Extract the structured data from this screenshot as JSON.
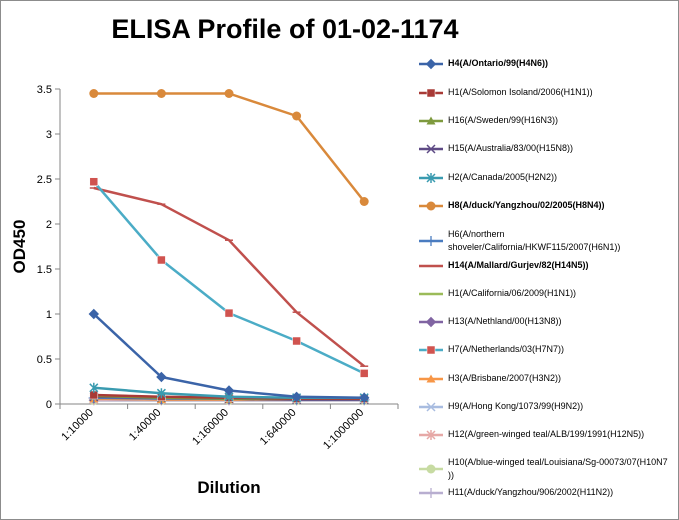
{
  "chart_data": {
    "type": "line",
    "title": "ELISA Profile of 01-02-1174",
    "xlabel": "Dilution",
    "ylabel": "OD450",
    "categories": [
      "1:10000",
      "1:40000",
      "1:160000",
      "1:640000",
      "1:1000000"
    ],
    "ylim": [
      0,
      3.5
    ],
    "yticks": [
      "0",
      "0.5",
      "1",
      "1.5",
      "2",
      "2.5",
      "3",
      "3.5"
    ],
    "grid": false,
    "legend_position": "right",
    "series": [
      {
        "name": "H4(A/Ontario/99(H4N6))",
        "color": "#3b64a8",
        "marker": "diamond",
        "bold": true,
        "values": [
          1.0,
          0.3,
          0.15,
          0.08,
          0.07
        ]
      },
      {
        "name": "H1(A/Solomon Isoland/2006(H1N1))",
        "color": "#a83a36",
        "marker": "square",
        "bold": false,
        "values": [
          0.1,
          0.08,
          0.07,
          0.06,
          0.06
        ]
      },
      {
        "name": "H16(A/Sweden/99(H16N3))",
        "color": "#7e9a3e",
        "marker": "triangle",
        "bold": false,
        "values": [
          0.09,
          0.07,
          0.06,
          0.06,
          0.06
        ]
      },
      {
        "name": "H15(A/Australia/83/00(H15N8))",
        "color": "#5e4a85",
        "marker": "x",
        "bold": false,
        "values": [
          0.08,
          0.07,
          0.06,
          0.05,
          0.05
        ]
      },
      {
        "name": "H2(A/Canada/2005(H2N2))",
        "color": "#3a9bb0",
        "marker": "star",
        "bold": false,
        "values": [
          0.18,
          0.12,
          0.08,
          0.07,
          0.07
        ]
      },
      {
        "name": "H8(A/duck/Yangzhou/02/2005(H8N4))",
        "color": "#d9893b",
        "marker": "circle",
        "bold": true,
        "values": [
          3.45,
          3.45,
          3.45,
          3.2,
          2.25
        ]
      },
      {
        "name": "H6(A/northern shoveler/California/HKWF115/2007(H6N1))",
        "color": "#4a7cc0",
        "marker": "plus",
        "bold": false,
        "values": [
          0.07,
          0.06,
          0.06,
          0.05,
          0.05
        ]
      },
      {
        "name": "H14(A/Mallard/Gurjev/82(H14N5))",
        "color": "#c0504d",
        "marker": "dash",
        "bold": true,
        "values": [
          2.4,
          2.22,
          1.82,
          1.02,
          0.42
        ]
      },
      {
        "name": "H1(A/California/06/2009(H1N1))",
        "color": "#9bbb59",
        "marker": "dash",
        "bold": false,
        "values": [
          0.06,
          0.06,
          0.05,
          0.05,
          0.05
        ]
      },
      {
        "name": "H13(A/Nethland/00(H13N8))",
        "color": "#8064a2",
        "marker": "diamond",
        "bold": false,
        "values": [
          0.06,
          0.05,
          0.05,
          0.05,
          0.05
        ]
      },
      {
        "name": "H7(A/Netherlands/03(H7N7))",
        "color": "#4bacc6",
        "marker": "square",
        "markerColor": "#d0534f",
        "bold": false,
        "values": [
          2.47,
          1.6,
          1.01,
          0.7,
          0.34
        ]
      },
      {
        "name": "H3(A/Brisbane/2007(H3N2))",
        "color": "#f79646",
        "marker": "triangle",
        "bold": false,
        "values": [
          0.06,
          0.05,
          0.05,
          0.05,
          0.05
        ]
      },
      {
        "name": "H9(A/Hong Kong/1073/99(H9N2))",
        "color": "#a8bce0",
        "marker": "x",
        "bold": false,
        "values": [
          0.05,
          0.05,
          0.05,
          0.05,
          0.05
        ]
      },
      {
        "name": "H12(A/green-winged teal/ALB/199/1991(H12N5))",
        "color": "#e6a8a6",
        "marker": "star",
        "bold": false,
        "values": [
          0.05,
          0.05,
          0.05,
          0.05,
          0.05
        ]
      },
      {
        "name": "H10(A/blue-winged teal/Louisiana/Sg-00073/07(H10N7 ))",
        "color": "#c7dba2",
        "marker": "circle",
        "bold": false,
        "values": [
          0.04,
          0.04,
          0.04,
          0.04,
          0.04
        ]
      },
      {
        "name": "H11(A/duck/Yangzhou/906/2002(H11N2))",
        "color": "#b8aed0",
        "marker": "plus",
        "bold": false,
        "values": [
          0.04,
          0.04,
          0.04,
          0.04,
          0.04
        ]
      }
    ]
  }
}
